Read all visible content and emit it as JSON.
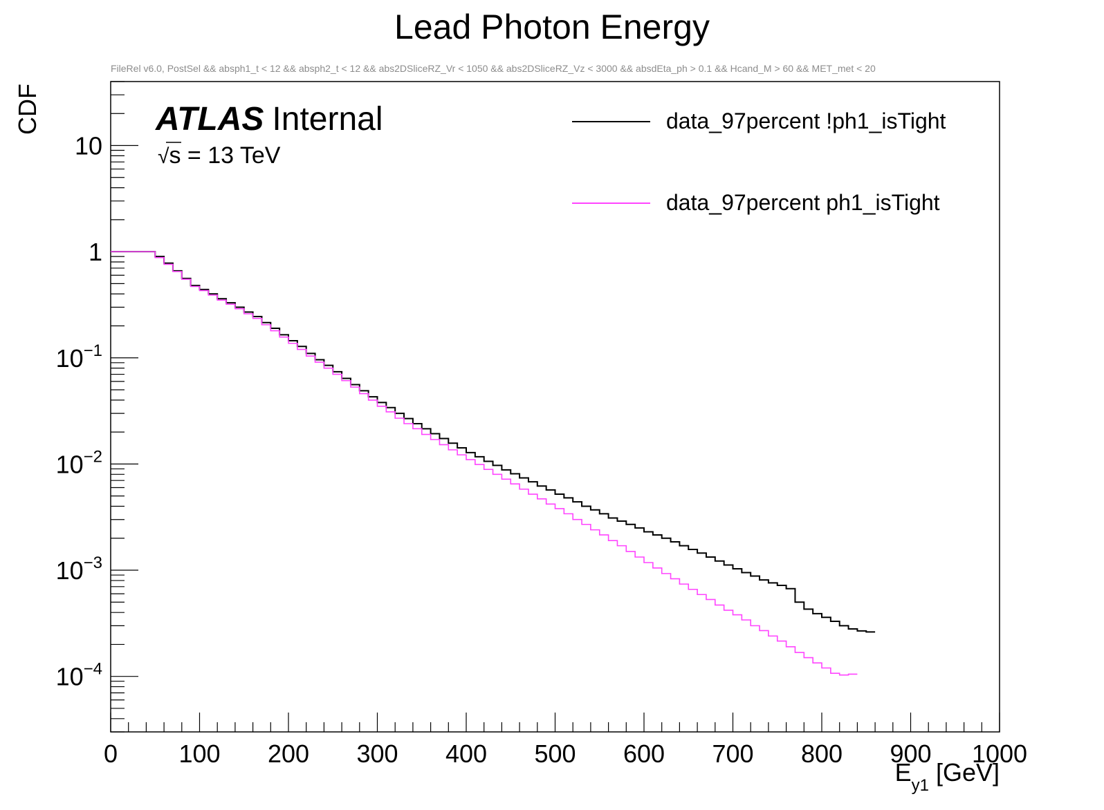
{
  "chart_data": {
    "type": "line",
    "style": "step",
    "title": "Lead Photon Energy",
    "subtitle": "FileRel v6.0, PostSel &&  absph1_t < 12 && absph2_t < 12 && abs2DSliceRZ_Vr < 1050 && abs2DSliceRZ_Vz < 3000 && absdEta_ph > 0.1 && Hcand_M > 60 && MET_met < 20",
    "xlabel_main": "E",
    "xlabel_sub": "y1",
    "xlabel_unit": "[GeV]",
    "ylabel": "CDF",
    "xlim": [
      0,
      1000
    ],
    "ylim": [
      3e-05,
      40
    ],
    "yscale": "log",
    "grid": false,
    "legend_position": "top-right",
    "x_ticks": [
      {
        "value": 0,
        "label": "0"
      },
      {
        "value": 100,
        "label": "100"
      },
      {
        "value": 200,
        "label": "200"
      },
      {
        "value": 300,
        "label": "300"
      },
      {
        "value": 400,
        "label": "400"
      },
      {
        "value": 500,
        "label": "500"
      },
      {
        "value": 600,
        "label": "600"
      },
      {
        "value": 700,
        "label": "700"
      },
      {
        "value": 800,
        "label": "800"
      },
      {
        "value": 900,
        "label": "900"
      },
      {
        "value": 1000,
        "label": "1000"
      }
    ],
    "y_ticks": [
      {
        "value": 10,
        "label": "10",
        "exp": ""
      },
      {
        "value": 1,
        "label": "1",
        "exp": ""
      },
      {
        "value": 0.1,
        "label": "10",
        "exp": "−1"
      },
      {
        "value": 0.01,
        "label": "10",
        "exp": "−2"
      },
      {
        "value": 0.001,
        "label": "10",
        "exp": "−3"
      },
      {
        "value": 0.0001,
        "label": "10",
        "exp": "−4"
      }
    ],
    "bin_width": 10,
    "series": [
      {
        "name": "data_97percent !ph1_isTight",
        "color": "#000000",
        "values": [
          1,
          1,
          1,
          1,
          1,
          0.9,
          0.78,
          0.66,
          0.56,
          0.48,
          0.44,
          0.4,
          0.36,
          0.33,
          0.3,
          0.27,
          0.245,
          0.215,
          0.19,
          0.165,
          0.145,
          0.128,
          0.11,
          0.096,
          0.085,
          0.074,
          0.064,
          0.056,
          0.049,
          0.043,
          0.038,
          0.034,
          0.03,
          0.0268,
          0.024,
          0.0215,
          0.0193,
          0.0174,
          0.0157,
          0.0142,
          0.0128,
          0.0117,
          0.0106,
          0.0097,
          0.0088,
          0.0081,
          0.0074,
          0.0068,
          0.0062,
          0.0057,
          0.0052,
          0.0048,
          0.0044,
          0.004,
          0.0037,
          0.0034,
          0.0031,
          0.0029,
          0.0027,
          0.0025,
          0.0023,
          0.00215,
          0.002,
          0.00185,
          0.0017,
          0.00157,
          0.00145,
          0.00133,
          0.00122,
          0.00112,
          0.00103,
          0.00095,
          0.00088,
          0.00081,
          0.00076,
          0.00072,
          0.00067,
          0.0005,
          0.00043,
          0.00039,
          0.00036,
          0.00033,
          0.0003,
          0.00028,
          0.000268,
          0.000262
        ]
      },
      {
        "name": "data_97percent ph1_isTight",
        "color": "#ff44ff",
        "values": [
          1,
          1,
          1,
          1,
          1,
          0.88,
          0.76,
          0.65,
          0.55,
          0.47,
          0.43,
          0.39,
          0.35,
          0.32,
          0.29,
          0.26,
          0.235,
          0.205,
          0.18,
          0.157,
          0.137,
          0.12,
          0.104,
          0.091,
          0.08,
          0.07,
          0.061,
          0.053,
          0.046,
          0.04,
          0.035,
          0.031,
          0.027,
          0.024,
          0.0215,
          0.019,
          0.017,
          0.0152,
          0.0136,
          0.0122,
          0.011,
          0.0099,
          0.0089,
          0.008,
          0.0072,
          0.0065,
          0.0058,
          0.0052,
          0.0047,
          0.0042,
          0.0038,
          0.0034,
          0.003,
          0.0027,
          0.0024,
          0.00215,
          0.0019,
          0.0017,
          0.0015,
          0.00133,
          0.00118,
          0.00105,
          0.00093,
          0.00083,
          0.00074,
          0.00066,
          0.00059,
          0.00053,
          0.00047,
          0.00042,
          0.00038,
          0.00034,
          0.0003,
          0.00027,
          0.00024,
          0.000215,
          0.00019,
          0.000168,
          0.00015,
          0.000134,
          0.00012,
          0.000107,
          0.000103,
          0.000105
        ]
      }
    ]
  },
  "annotations": {
    "atlas": "ATLAS",
    "internal": "Internal",
    "sqrt_symbol": "√",
    "energy_s": "s",
    "energy_rest": " = 13 TeV"
  }
}
